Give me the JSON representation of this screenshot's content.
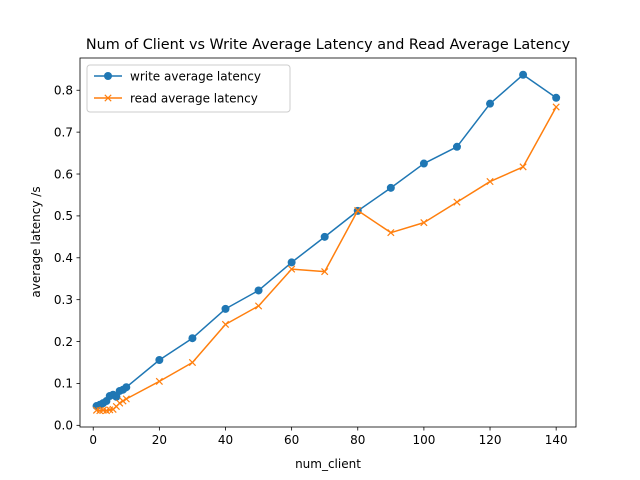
{
  "chart_data": {
    "type": "line",
    "title": "Num of Client vs Write Average Latency and Read Average Latency",
    "xlabel": "num_client",
    "ylabel": "average latency /s",
    "xlim": [
      -4,
      146
    ],
    "ylim": [
      -0.004,
      0.877
    ],
    "xticks": [
      0,
      20,
      40,
      60,
      80,
      100,
      120,
      140
    ],
    "yticks": [
      0.0,
      0.1,
      0.2,
      0.3,
      0.4,
      0.5,
      0.6,
      0.7,
      0.8
    ],
    "xtick_labels": [
      "0",
      "20",
      "40",
      "60",
      "80",
      "100",
      "120",
      "140"
    ],
    "ytick_labels": [
      "0.0",
      "0.1",
      "0.2",
      "0.3",
      "0.4",
      "0.5",
      "0.6",
      "0.7",
      "0.8"
    ],
    "grid": false,
    "legend_position": "top-left",
    "x": [
      1,
      2,
      3,
      4,
      5,
      6,
      7,
      8,
      9,
      10,
      20,
      30,
      40,
      50,
      60,
      70,
      80,
      90,
      100,
      110,
      120,
      130,
      140
    ],
    "series": [
      {
        "name": "write average latency",
        "color": "#1f77b4",
        "marker": "circle",
        "values": [
          0.046,
          0.049,
          0.053,
          0.058,
          0.07,
          0.073,
          0.068,
          0.082,
          0.085,
          0.091,
          0.156,
          0.208,
          0.278,
          0.322,
          0.389,
          0.45,
          0.512,
          0.567,
          0.625,
          0.665,
          0.768,
          0.837,
          0.782
        ]
      },
      {
        "name": "read average latency",
        "color": "#ff7f0e",
        "marker": "x",
        "values": [
          0.036,
          0.035,
          0.036,
          0.035,
          0.037,
          0.038,
          0.045,
          0.053,
          0.058,
          0.063,
          0.105,
          0.15,
          0.241,
          0.285,
          0.373,
          0.367,
          0.513,
          0.46,
          0.484,
          0.533,
          0.582,
          0.617,
          0.76
        ]
      }
    ]
  }
}
